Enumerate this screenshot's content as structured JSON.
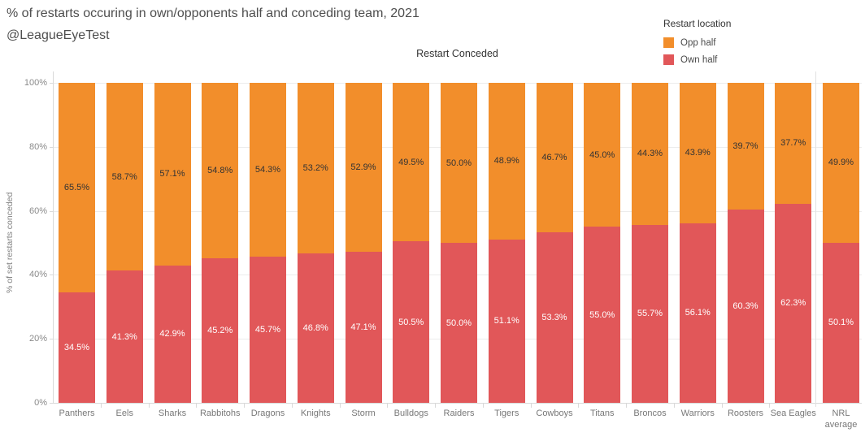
{
  "header": {
    "title": "% of restarts occuring in own/opponents half and conceding team, 2021",
    "subtitle": "@LeagueEyeTest"
  },
  "legend": {
    "title": "Restart location",
    "items": [
      {
        "label": "Opp half",
        "color": "#f28e2b"
      },
      {
        "label": "Own half",
        "color": "#e15759"
      }
    ]
  },
  "chart_data": {
    "type": "bar",
    "stacked": true,
    "orientation": "vertical",
    "title": "Restart Conceded",
    "xlabel": "",
    "ylabel": "% of set restarts conceded",
    "ylim": [
      0,
      100
    ],
    "ytick_values": [
      0,
      20,
      40,
      60,
      80,
      100
    ],
    "ytick_labels": [
      "0%",
      "20%",
      "40%",
      "60%",
      "80%",
      "100%"
    ],
    "grid": true,
    "legend_position": "top-right",
    "pane_split_after_index": 15,
    "categories": [
      "Panthers",
      "Eels",
      "Sharks",
      "Rabbitohs",
      "Dragons",
      "Knights",
      "Storm",
      "Bulldogs",
      "Raiders",
      "Tigers",
      "Cowboys",
      "Titans",
      "Broncos",
      "Warriors",
      "Roosters",
      "Sea Eagles",
      "NRL average"
    ],
    "categories_display": [
      "Panthers",
      "Eels",
      "Sharks",
      "Rabbitohs",
      "Dragons",
      "Knights",
      "Storm",
      "Bulldogs",
      "Raiders",
      "Tigers",
      "Cowboys",
      "Titans",
      "Broncos",
      "Warriors",
      "Roosters",
      "Sea Eagles",
      "NRL\naverage"
    ],
    "series": [
      {
        "name": "Opp half",
        "color": "#f28e2b",
        "label_color": "dark",
        "values": [
          65.5,
          58.7,
          57.1,
          54.8,
          54.3,
          53.2,
          52.9,
          49.5,
          50.0,
          48.9,
          46.7,
          45.0,
          44.3,
          43.9,
          39.7,
          37.7,
          49.9
        ],
        "labels": [
          "65.5%",
          "58.7%",
          "57.1%",
          "54.8%",
          "54.3%",
          "53.2%",
          "52.9%",
          "49.5%",
          "50.0%",
          "48.9%",
          "46.7%",
          "45.0%",
          "44.3%",
          "43.9%",
          "39.7%",
          "37.7%",
          "49.9%"
        ]
      },
      {
        "name": "Own half",
        "color": "#e15759",
        "label_color": "light",
        "values": [
          34.5,
          41.3,
          42.9,
          45.2,
          45.7,
          46.8,
          47.1,
          50.5,
          50.0,
          51.1,
          53.3,
          55.0,
          55.7,
          56.1,
          60.3,
          62.3,
          50.1
        ],
        "labels": [
          "34.5%",
          "41.3%",
          "42.9%",
          "45.2%",
          "45.7%",
          "46.8%",
          "47.1%",
          "50.5%",
          "50.0%",
          "51.1%",
          "53.3%",
          "55.0%",
          "55.7%",
          "56.1%",
          "60.3%",
          "62.3%",
          "50.1%"
        ]
      }
    ]
  }
}
